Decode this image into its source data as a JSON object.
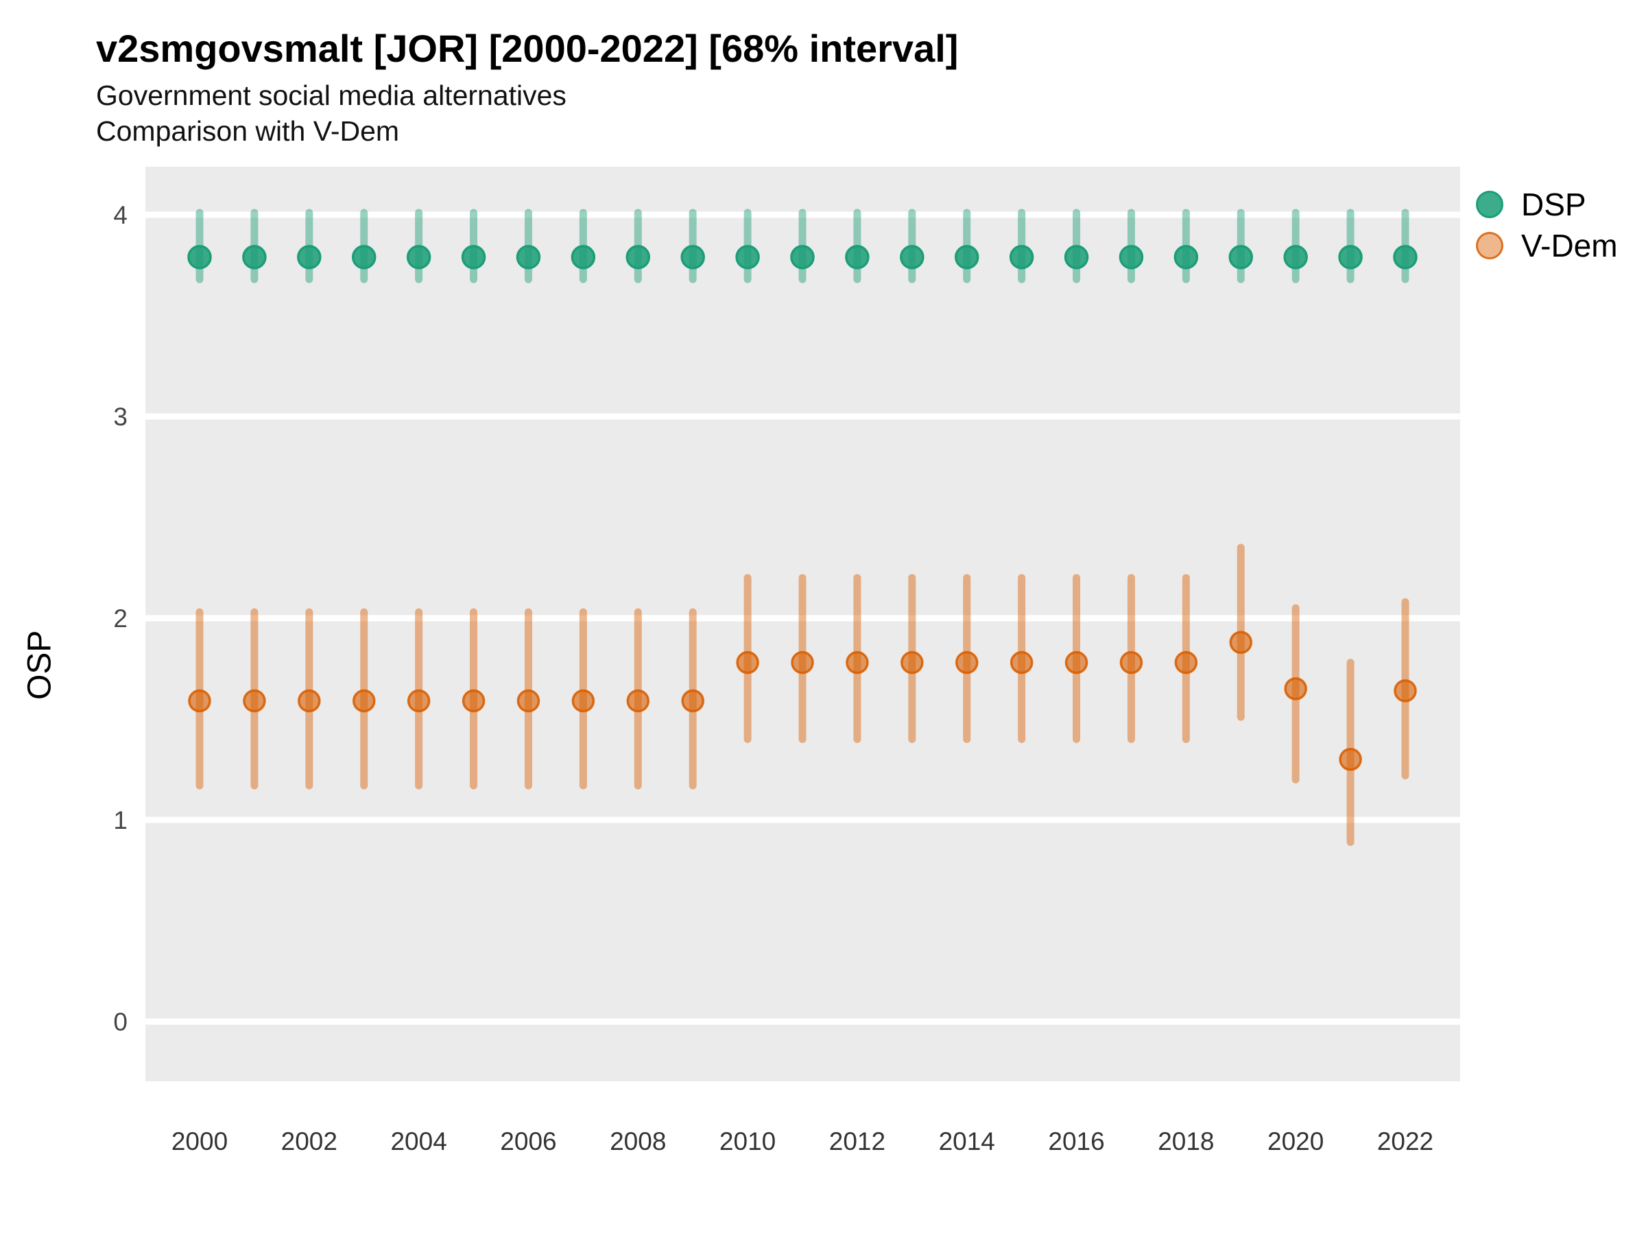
{
  "title": "v2smgovsmalt [JOR] [2000-2022] [68% interval]",
  "subtitle_line1": "Government social media alternatives",
  "subtitle_line2": "Comparison with V-Dem",
  "y_axis_title": "OSP",
  "legend": {
    "items": [
      {
        "label": "DSP",
        "color": "#1b9e77"
      },
      {
        "label": "V-Dem",
        "color": "#d95f02"
      }
    ]
  },
  "chart_data": {
    "type": "scatter",
    "title": "v2smgovsmalt [JOR] [2000-2022] [68% interval]",
    "subtitle": "Government social media alternatives",
    "comparison_note": "Comparison with V-Dem",
    "interval_level": "68%",
    "xlabel": "",
    "ylabel": "OSP",
    "x": [
      2000,
      2001,
      2002,
      2003,
      2004,
      2005,
      2006,
      2007,
      2008,
      2009,
      2010,
      2011,
      2012,
      2013,
      2014,
      2015,
      2016,
      2017,
      2018,
      2019,
      2020,
      2021,
      2022
    ],
    "x_tick_labels": [
      "2000",
      "2002",
      "2004",
      "2006",
      "2008",
      "2010",
      "2012",
      "2014",
      "2016",
      "2018",
      "2020",
      "2022"
    ],
    "yticks": [
      0,
      1,
      2,
      3,
      4
    ],
    "ylim": [
      -0.32,
      4.25
    ],
    "panel_background": "#ebebeb",
    "grid": {
      "show": true,
      "color": "#ffffff"
    },
    "legend_position": "right-top",
    "series": [
      {
        "name": "DSP",
        "color": "#1b9e77",
        "est": [
          3.79,
          3.79,
          3.79,
          3.79,
          3.79,
          3.79,
          3.79,
          3.79,
          3.79,
          3.79,
          3.79,
          3.79,
          3.79,
          3.79,
          3.79,
          3.79,
          3.79,
          3.79,
          3.79,
          3.79,
          3.79,
          3.79,
          3.79
        ],
        "lo": [
          3.68,
          3.68,
          3.68,
          3.68,
          3.68,
          3.68,
          3.68,
          3.68,
          3.68,
          3.68,
          3.68,
          3.68,
          3.68,
          3.68,
          3.68,
          3.68,
          3.68,
          3.68,
          3.68,
          3.68,
          3.68,
          3.68,
          3.68
        ],
        "hi": [
          4.01,
          4.01,
          4.01,
          4.01,
          4.01,
          4.01,
          4.01,
          4.01,
          4.01,
          4.01,
          4.01,
          4.01,
          4.01,
          4.01,
          4.01,
          4.01,
          4.01,
          4.01,
          4.01,
          4.01,
          4.01,
          4.01,
          4.01
        ]
      },
      {
        "name": "V-Dem",
        "color": "#d95f02",
        "est": [
          1.59,
          1.59,
          1.59,
          1.59,
          1.59,
          1.59,
          1.59,
          1.59,
          1.59,
          1.59,
          1.78,
          1.78,
          1.78,
          1.78,
          1.78,
          1.78,
          1.78,
          1.78,
          1.78,
          1.88,
          1.65,
          1.3,
          1.64
        ],
        "lo": [
          1.17,
          1.17,
          1.17,
          1.17,
          1.17,
          1.17,
          1.17,
          1.17,
          1.17,
          1.17,
          1.4,
          1.4,
          1.4,
          1.4,
          1.4,
          1.4,
          1.4,
          1.4,
          1.4,
          1.51,
          1.2,
          0.89,
          1.22
        ],
        "hi": [
          2.03,
          2.03,
          2.03,
          2.03,
          2.03,
          2.03,
          2.03,
          2.03,
          2.03,
          2.03,
          2.2,
          2.2,
          2.2,
          2.2,
          2.2,
          2.2,
          2.2,
          2.2,
          2.2,
          2.35,
          2.05,
          1.78,
          2.08
        ]
      }
    ]
  }
}
